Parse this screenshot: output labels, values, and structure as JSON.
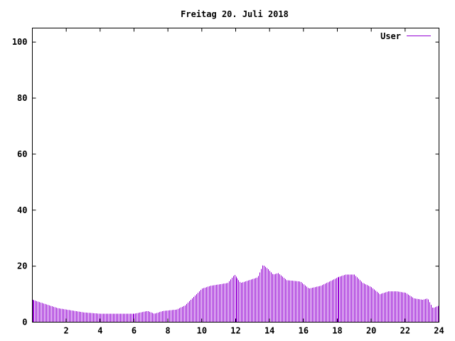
{
  "chart_data": {
    "type": "bar",
    "title": "Freitag 20. Juli 2018",
    "xlim": [
      0,
      24
    ],
    "ylim": [
      0,
      105
    ],
    "xticks": [
      2,
      4,
      6,
      8,
      10,
      12,
      14,
      16,
      18,
      20,
      22,
      24
    ],
    "yticks": [
      0,
      20,
      40,
      60,
      80,
      100
    ],
    "legend_position": "top-right",
    "series": [
      {
        "name": "User",
        "color": "#9400d3",
        "anchors": [
          [
            0,
            8
          ],
          [
            0.5,
            7
          ],
          [
            1.0,
            6
          ],
          [
            1.5,
            5
          ],
          [
            2.0,
            4.5
          ],
          [
            3.0,
            3.5
          ],
          [
            4.0,
            3
          ],
          [
            6.0,
            3
          ],
          [
            6.8,
            4
          ],
          [
            7.2,
            3
          ],
          [
            7.7,
            4
          ],
          [
            8.5,
            4.5
          ],
          [
            9.0,
            6
          ],
          [
            9.5,
            9
          ],
          [
            10.0,
            12
          ],
          [
            10.5,
            13
          ],
          [
            11.0,
            13.5
          ],
          [
            11.5,
            14
          ],
          [
            11.9,
            17
          ],
          [
            12.3,
            14
          ],
          [
            12.8,
            15
          ],
          [
            13.3,
            16
          ],
          [
            13.6,
            20.5
          ],
          [
            13.9,
            19
          ],
          [
            14.2,
            17
          ],
          [
            14.5,
            17.5
          ],
          [
            15.0,
            15
          ],
          [
            15.8,
            14.5
          ],
          [
            16.3,
            12
          ],
          [
            17.0,
            13
          ],
          [
            17.5,
            14.5
          ],
          [
            18.0,
            16
          ],
          [
            18.5,
            17
          ],
          [
            19.0,
            17
          ],
          [
            19.5,
            14
          ],
          [
            20.0,
            12.5
          ],
          [
            20.5,
            10
          ],
          [
            21.0,
            11
          ],
          [
            21.5,
            11
          ],
          [
            22.0,
            10.5
          ],
          [
            22.5,
            8.5
          ],
          [
            23.0,
            8
          ],
          [
            23.3,
            8.5
          ],
          [
            23.6,
            5
          ],
          [
            24.0,
            6
          ]
        ]
      }
    ]
  }
}
